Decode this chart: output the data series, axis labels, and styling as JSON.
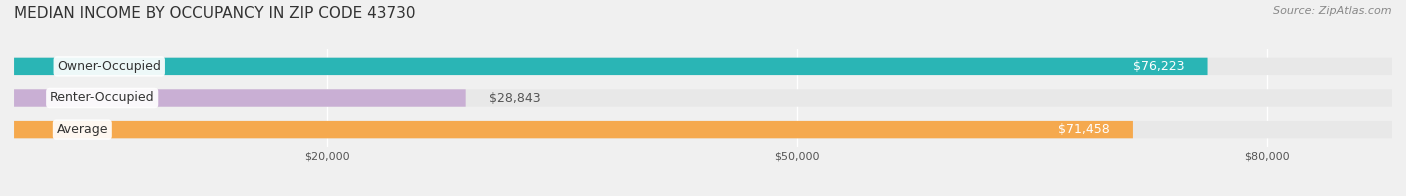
{
  "title": "MEDIAN INCOME BY OCCUPANCY IN ZIP CODE 43730",
  "source_text": "Source: ZipAtlas.com",
  "categories": [
    "Owner-Occupied",
    "Renter-Occupied",
    "Average"
  ],
  "values": [
    76223,
    28843,
    71458
  ],
  "bar_colors": [
    "#2ab5b5",
    "#c9afd4",
    "#f5a94e"
  ],
  "label_color_inside": "#ffffff",
  "label_color_outside": "#555555",
  "background_color": "#f0f0f0",
  "bar_background_color": "#e8e8e8",
  "xlim": [
    0,
    88000
  ],
  "xticks": [
    20000,
    50000,
    80000
  ],
  "xtick_labels": [
    "$20,000",
    "$50,000",
    "$80,000"
  ],
  "bar_height": 0.55,
  "figsize": [
    14.06,
    1.96
  ],
  "dpi": 100,
  "title_fontsize": 11,
  "label_fontsize": 9,
  "value_fontsize": 9,
  "tick_fontsize": 8,
  "source_fontsize": 8
}
